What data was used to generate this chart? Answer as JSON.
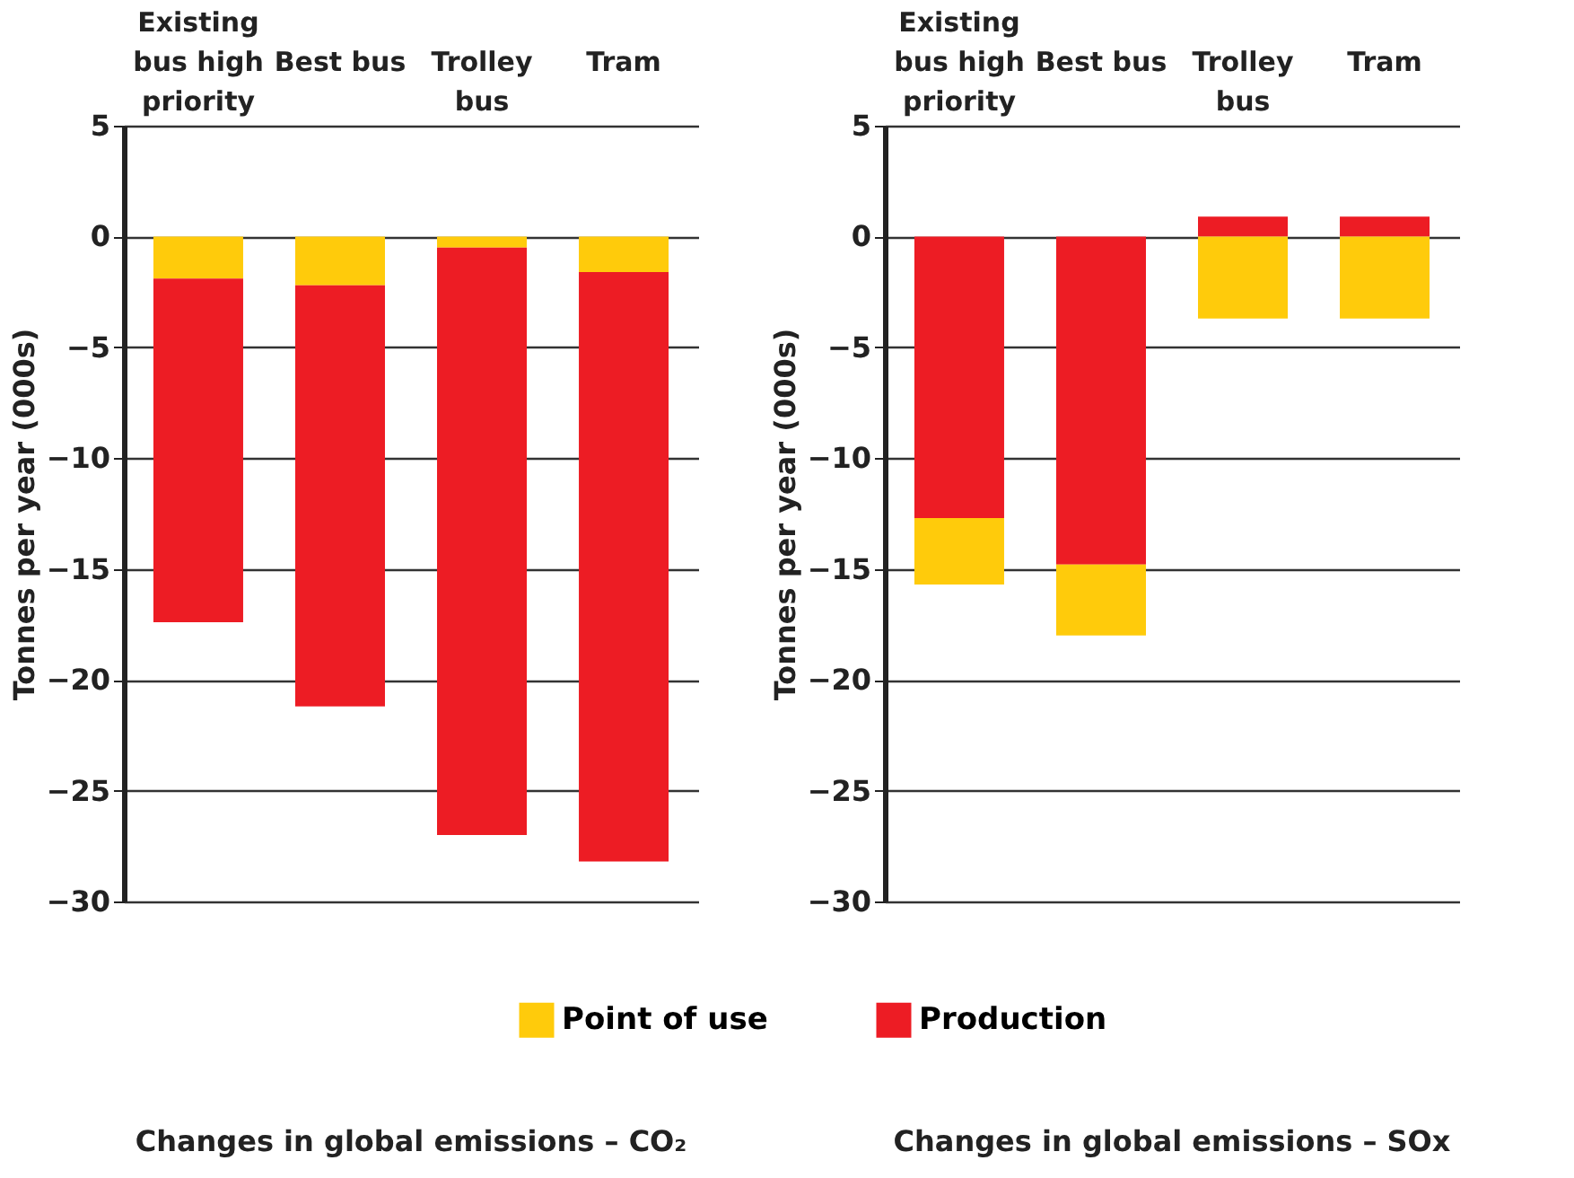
{
  "chart_data": [
    {
      "type": "bar",
      "title": "Changes in global emissions – CO₂",
      "ylabel": "Tonnes per year (000s)",
      "categories": [
        "Existing bus high priority",
        "Best bus",
        "Trolley bus",
        "Tram"
      ],
      "stacked": true,
      "ylim": [
        -30,
        5
      ],
      "yticks": [
        5,
        0,
        -5,
        -10,
        -15,
        -20,
        -25,
        -30
      ],
      "grid": "y",
      "legend": "bottom",
      "series": [
        {
          "name": "Point of use",
          "color": "#ffcb0b",
          "values": [
            -1.9,
            -2.2,
            -0.5,
            -1.6
          ]
        },
        {
          "name": "Production",
          "color": "#ed1c24",
          "values": [
            -15.5,
            -19.0,
            -26.5,
            -26.6
          ]
        }
      ]
    },
    {
      "type": "bar",
      "title": "Changes in global emissions – SOx",
      "ylabel": "Tonnes per year (000s)",
      "categories": [
        "Existing bus high priority",
        "Best bus",
        "Trolley bus",
        "Tram"
      ],
      "stacked": true,
      "ylim": [
        -30,
        5
      ],
      "yticks": [
        5,
        0,
        -5,
        -10,
        -15,
        -20,
        -25,
        -30
      ],
      "grid": "y",
      "legend": "bottom",
      "series": [
        {
          "name": "Production",
          "color": "#ed1c24",
          "values": [
            -12.7,
            -14.8,
            0.9,
            0.9
          ]
        },
        {
          "name": "Point of use",
          "color": "#ffcb0b",
          "values": [
            -3.0,
            -3.2,
            -3.7,
            -3.7
          ]
        }
      ]
    }
  ]
}
